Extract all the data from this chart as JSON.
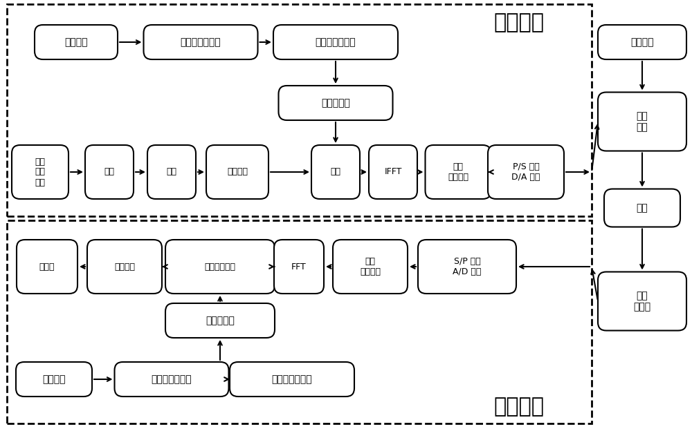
{
  "bg_color": "#ffffff",
  "box_color": "#ffffff",
  "box_edge": "#000000",
  "arrow_color": "#000000",
  "text_color": "#000000",
  "enc_label": "加密模块",
  "dec_label": "解密模块",
  "enc_top_row": [
    "加密秘钥",
    "混沌信号发生器",
    "混沌信号序列流"
  ],
  "enc_mid_box": "二值生成器",
  "enc_main_row": [
    "原始\n信号\n数据",
    "编码",
    "映射",
    "加入导频",
    "异或",
    "IFFT",
    "添加\n循环前级",
    "P/S 转换\nD/A 转换"
  ],
  "right_col": [
    "激光光源",
    "光调\n制器",
    "光纤",
    "光电\n探测器"
  ],
  "dec_main_row": [
    "去映射",
    "信道均衡",
    "导频信道估计",
    "FFT",
    "移除\n循环前级",
    "S/P 转换\nA/D 转换"
  ],
  "dec_mid_box": "二值生成器",
  "dec_bot_row": [
    "加密秘钥",
    "混沌信号发生器",
    "混沌信号序列流"
  ]
}
